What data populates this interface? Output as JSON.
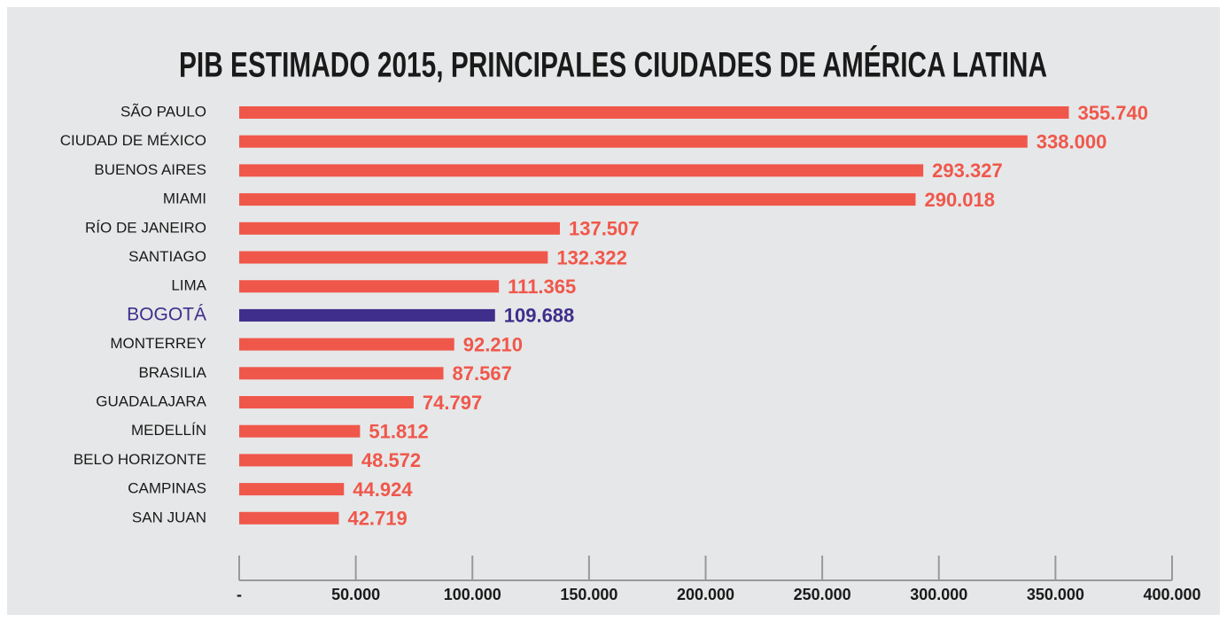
{
  "chart_data": {
    "type": "barh",
    "title": "PIB ESTIMADO 2015, PRINCIPALES CIUDADES DE AMÉRICA LATINA",
    "categories": [
      "SÃO PAULO",
      "CIUDAD DE MÉXICO",
      "BUENOS AIRES",
      "MIAMI",
      "RÍO DE JANEIRO",
      "SANTIAGO",
      "LIMA",
      "BOGOTÁ",
      "MONTERREY",
      "BRASILIA",
      "GUADALAJARA",
      "MEDELLÍN",
      "BELO HORIZONTE",
      "CAMPINAS",
      "SAN JUAN"
    ],
    "values": [
      355740,
      338000,
      293327,
      290018,
      137507,
      132322,
      111365,
      109688,
      92210,
      87567,
      74797,
      51812,
      48572,
      44924,
      42719
    ],
    "value_labels": [
      "355.740",
      "338.000",
      "293.327",
      "290.018",
      "137.507",
      "132.322",
      "111.365",
      "109.688",
      "92.210",
      "87.567",
      "74.797",
      "51.812",
      "48.572",
      "44.924",
      "42.719"
    ],
    "colors": [
      "#f0574b",
      "#f0574b",
      "#f0574b",
      "#f0574b",
      "#f0574b",
      "#f0574b",
      "#f0574b",
      "#3f2e8c",
      "#f0574b",
      "#f0574b",
      "#f0574b",
      "#f0574b",
      "#f0574b",
      "#f0574b",
      "#f0574b"
    ],
    "xlim": [
      0,
      400000
    ],
    "xticks": [
      {
        "value": 0,
        "label": "-"
      },
      {
        "value": 50000,
        "label": "50.000"
      },
      {
        "value": 100000,
        "label": "100.000"
      },
      {
        "value": 150000,
        "label": "150.000"
      },
      {
        "value": 200000,
        "label": "200.000"
      },
      {
        "value": 250000,
        "label": "250.000"
      },
      {
        "value": 300000,
        "label": "300.000"
      },
      {
        "value": 350000,
        "label": "350.000"
      },
      {
        "value": 400000,
        "label": "400.000"
      }
    ]
  }
}
